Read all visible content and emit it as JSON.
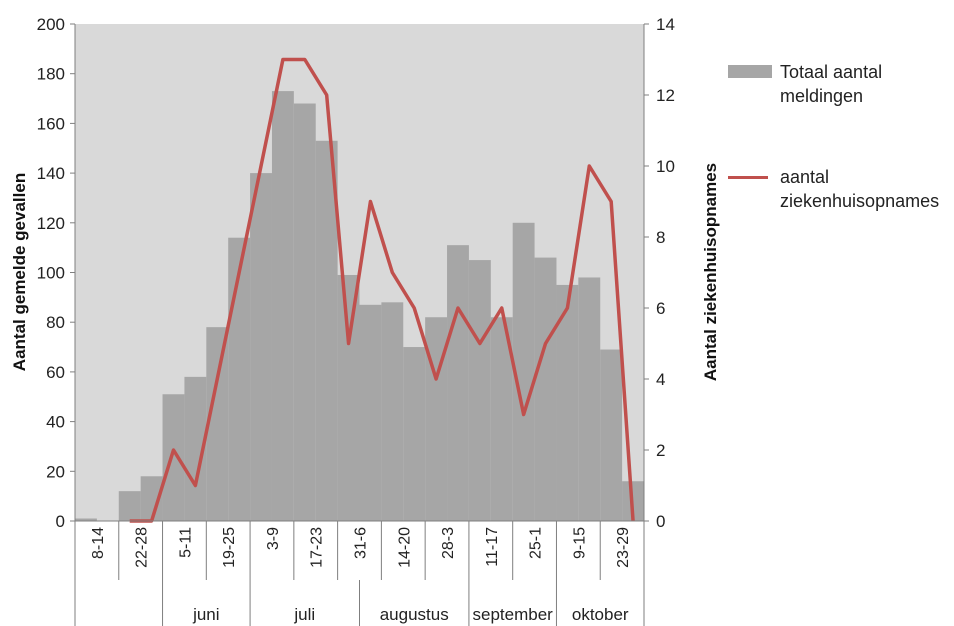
{
  "chart_data": {
    "type": "bar",
    "categories": [
      "8-14",
      "",
      "22-28",
      "",
      "5-11",
      "",
      "19-25",
      "",
      "3-9",
      "",
      "17-23",
      "",
      "31-6",
      "",
      "14-20",
      "",
      "28-3",
      "",
      "11-17",
      "",
      "25-1",
      "",
      "9-15",
      "",
      "23-29",
      ""
    ],
    "month_groups": [
      {
        "label": "",
        "span": 4
      },
      {
        "label": "juni",
        "span": 4
      },
      {
        "label": "juli",
        "span": 5
      },
      {
        "label": "augustus",
        "span": 5
      },
      {
        "label": "september",
        "span": 4
      },
      {
        "label": "oktober",
        "span": 4
      }
    ],
    "series": [
      {
        "name": "Totaal aantal meldingen",
        "type": "bar",
        "axis": "left",
        "color": "#a6a6a6",
        "values": [
          1,
          0,
          12,
          18,
          51,
          58,
          78,
          114,
          140,
          173,
          168,
          153,
          99,
          87,
          88,
          70,
          82,
          111,
          105,
          82,
          120,
          106,
          95,
          98,
          69,
          16
        ]
      },
      {
        "name": "aantal ziekenhuisopnames",
        "type": "line",
        "axis": "right",
        "color": "#c0504d",
        "values": [
          null,
          null,
          0,
          0,
          2,
          1,
          4,
          7,
          10,
          13,
          13,
          12,
          5,
          9,
          7,
          6,
          4,
          6,
          5,
          6,
          3,
          5,
          6,
          10,
          9,
          0
        ]
      }
    ],
    "ylabel": "Aantal gemelde gevallen",
    "ylabel_right": "Aantal ziekenhuisopnames",
    "ylim": [
      0,
      200
    ],
    "ylim_right": [
      0,
      14
    ],
    "yticks": [
      0,
      20,
      40,
      60,
      80,
      100,
      120,
      140,
      160,
      180,
      200
    ],
    "yticks_right": [
      0,
      2,
      4,
      6,
      8,
      10,
      12,
      14
    ],
    "grid": false,
    "legend_position": "right"
  }
}
